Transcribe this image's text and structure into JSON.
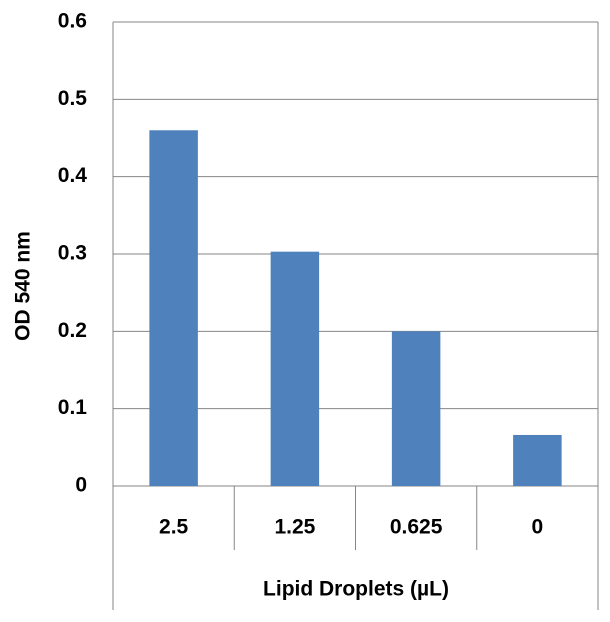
{
  "chart_data": {
    "type": "bar",
    "categories": [
      "2.5",
      "1.25",
      "0.625",
      "0"
    ],
    "values": [
      0.46,
      0.303,
      0.2,
      0.066
    ],
    "color": "#4f81bd",
    "ylim": [
      0,
      0.6
    ],
    "yticks": [
      0,
      0.1,
      0.2,
      0.3,
      0.4,
      0.5,
      0.6
    ],
    "grid": true,
    "ylabel": "OD 540 nm",
    "xlabel": "Lipid Droplets (µL)"
  }
}
